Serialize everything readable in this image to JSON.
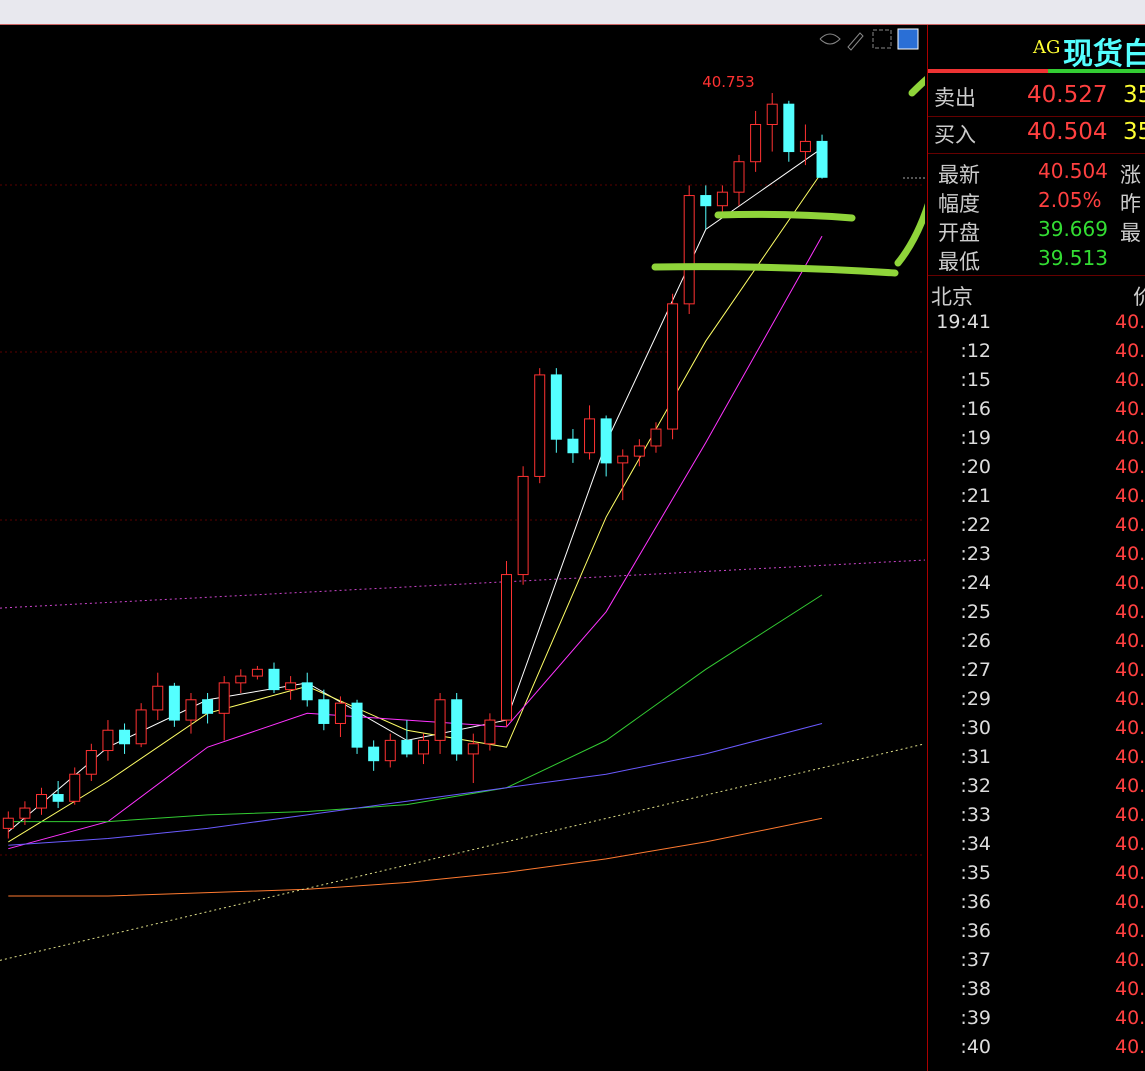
{
  "chart_data": {
    "type": "candlestick",
    "open": [
      38.58,
      38.61,
      38.64,
      38.68,
      38.66,
      38.74,
      38.81,
      38.87,
      38.83,
      38.93,
      39.0,
      38.9,
      38.96,
      38.92,
      39.01,
      39.03,
      39.05,
      38.99,
      39.01,
      38.96,
      38.89,
      38.95,
      38.82,
      38.78,
      38.84,
      38.8,
      38.84,
      38.96,
      38.8,
      38.83,
      38.9,
      39.33,
      39.62,
      39.92,
      39.73,
      39.69,
      39.79,
      39.66,
      39.68,
      39.71,
      39.76,
      40.13,
      40.45,
      40.42,
      40.46,
      40.55,
      40.66,
      40.72,
      40.58,
      40.61
    ],
    "high": [
      38.63,
      38.66,
      38.7,
      38.72,
      38.76,
      38.83,
      38.9,
      38.89,
      38.95,
      39.04,
      39.01,
      38.98,
      38.98,
      39.03,
      39.05,
      39.06,
      39.07,
      39.03,
      39.04,
      38.99,
      38.97,
      38.96,
      38.84,
      38.86,
      38.9,
      38.86,
      38.98,
      38.98,
      38.86,
      38.92,
      39.37,
      39.65,
      39.94,
      39.94,
      39.76,
      39.83,
      39.8,
      39.7,
      39.73,
      39.78,
      40.16,
      40.48,
      40.48,
      40.48,
      40.57,
      40.7,
      40.753,
      40.73,
      40.66,
      40.63
    ],
    "low": [
      38.55,
      38.59,
      38.62,
      38.64,
      38.65,
      38.72,
      38.78,
      38.8,
      38.82,
      38.9,
      38.88,
      38.86,
      38.89,
      38.84,
      38.98,
      39.02,
      38.98,
      38.96,
      38.94,
      38.87,
      38.85,
      38.8,
      38.75,
      38.76,
      38.79,
      38.77,
      38.8,
      38.78,
      38.714,
      38.81,
      38.88,
      39.3,
      39.6,
      39.69,
      39.66,
      39.67,
      39.62,
      39.55,
      39.65,
      39.69,
      39.73,
      40.1,
      40.35,
      40.4,
      40.42,
      40.52,
      40.58,
      40.55,
      40.54,
      40.5
    ],
    "close": [
      38.61,
      38.64,
      38.68,
      38.66,
      38.74,
      38.81,
      38.87,
      38.83,
      38.93,
      39.0,
      38.9,
      38.96,
      38.92,
      39.01,
      39.03,
      39.05,
      38.99,
      39.01,
      38.96,
      38.89,
      38.95,
      38.82,
      38.78,
      38.84,
      38.8,
      38.84,
      38.96,
      38.8,
      38.83,
      38.9,
      39.33,
      39.62,
      39.92,
      39.73,
      39.69,
      39.79,
      39.66,
      39.68,
      39.71,
      39.76,
      40.13,
      40.45,
      40.42,
      40.46,
      40.55,
      40.66,
      40.72,
      40.58,
      40.61,
      40.504
    ],
    "up_color": "#ff3232",
    "down_color": "#54ffff",
    "xlim": [
      -0.5,
      55.2
    ],
    "ylim": [
      37.863,
      40.954
    ],
    "lines": [
      {
        "color": "#ffffff",
        "x": [
          0,
          6,
          12,
          18,
          24,
          30,
          36,
          42,
          49
        ],
        "values": [
          38.57,
          38.82,
          38.96,
          39.01,
          38.84,
          38.9,
          39.72,
          40.35,
          40.59
        ]
      },
      {
        "color": "#ffff66",
        "x": [
          0,
          6,
          12,
          18,
          24,
          30,
          36,
          42,
          49
        ],
        "values": [
          38.54,
          38.72,
          38.92,
          39.0,
          38.87,
          38.82,
          39.5,
          40.02,
          40.52
        ]
      },
      {
        "color": "#ff33ff",
        "x": [
          0,
          6,
          12,
          18,
          24,
          30,
          36,
          42,
          49
        ],
        "values": [
          38.52,
          38.6,
          38.82,
          38.92,
          38.9,
          38.88,
          39.22,
          39.72,
          40.33
        ]
      },
      {
        "color": "#33cc33",
        "x": [
          0,
          6,
          12,
          18,
          24,
          30,
          36,
          42,
          49
        ],
        "values": [
          38.6,
          38.6,
          38.62,
          38.63,
          38.65,
          38.7,
          38.84,
          39.05,
          39.27
        ]
      },
      {
        "color": "#6a5aff",
        "x": [
          0,
          6,
          12,
          18,
          24,
          30,
          36,
          42,
          49
        ],
        "values": [
          38.53,
          38.55,
          38.58,
          38.62,
          38.66,
          38.7,
          38.74,
          38.8,
          38.89
        ]
      },
      {
        "color": "#ff7a30",
        "x": [
          0,
          6,
          12,
          18,
          24,
          30,
          36,
          42,
          49
        ],
        "values": [
          38.38,
          38.38,
          38.39,
          38.4,
          38.42,
          38.45,
          38.49,
          38.54,
          38.61
        ]
      },
      {
        "color": "#cc44cc",
        "dashed": true,
        "x": [
          -0.5,
          55.2
        ],
        "values": [
          39.231,
          39.373
        ]
      },
      {
        "color": "#dddd88",
        "dashed": true,
        "x": [
          -0.5,
          55.2
        ],
        "values": [
          38.19,
          38.83
        ]
      }
    ]
  },
  "panel": {
    "symbol": "AG",
    "name": "现货白",
    "quotes": [
      {
        "label": "卖出",
        "price": "40.527",
        "volume": "35"
      },
      {
        "label": "买入",
        "price": "40.504",
        "volume": "35"
      }
    ],
    "info": [
      {
        "label": "最新",
        "value": "40.504",
        "next": "涨"
      },
      {
        "label": "幅度",
        "value": "2.05%",
        "next": "昨"
      },
      {
        "label": "开盘",
        "value": "39.669",
        "next": "最"
      },
      {
        "label": "最低",
        "value": "39.513"
      }
    ],
    "ticks_header": [
      "北京",
      "价"
    ],
    "ticks": [
      {
        "time": "19:41",
        "price": "40."
      },
      {
        "time": ":12",
        "price": "40."
      },
      {
        "time": ":15",
        "price": "40."
      },
      {
        "time": ":16",
        "price": "40."
      },
      {
        "time": ":19",
        "price": "40."
      },
      {
        "time": ":20",
        "price": "40."
      },
      {
        "time": ":21",
        "price": "40."
      },
      {
        "time": ":22",
        "price": "40."
      },
      {
        "time": ":23",
        "price": "40."
      },
      {
        "time": ":24",
        "price": "40."
      },
      {
        "time": ":25",
        "price": "40."
      },
      {
        "time": ":26",
        "price": "40."
      },
      {
        "time": ":27",
        "price": "40."
      },
      {
        "time": ":29",
        "price": "40."
      },
      {
        "time": ":30",
        "price": "40."
      },
      {
        "time": ":31",
        "price": "40."
      },
      {
        "time": ":32",
        "price": "40."
      },
      {
        "time": ":33",
        "price": "40."
      },
      {
        "time": ":34",
        "price": "40."
      },
      {
        "time": ":35",
        "price": "40."
      },
      {
        "time": ":36",
        "price": "40."
      },
      {
        "time": ":36",
        "price": "40."
      },
      {
        "time": ":37",
        "price": "40."
      },
      {
        "time": ":38",
        "price": "40."
      },
      {
        "time": ":39",
        "price": "40."
      },
      {
        "time": ":40",
        "price": "40."
      }
    ]
  }
}
